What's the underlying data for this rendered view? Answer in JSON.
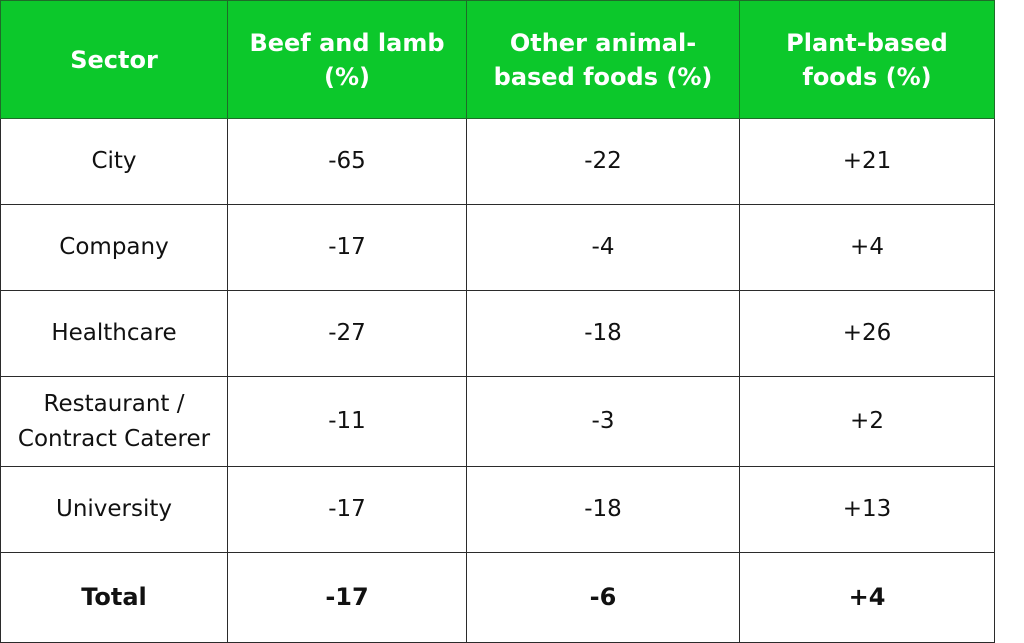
{
  "chart_data": {
    "type": "table",
    "columns": [
      "Sector",
      "Beef and lamb (%)",
      "Other animal-based foods (%)",
      "Plant-based foods (%)"
    ],
    "rows": [
      {
        "sector": "City",
        "beef_and_lamb": "-65",
        "other_animal": "-22",
        "plant_based": "+21"
      },
      {
        "sector": "Company",
        "beef_and_lamb": "-17",
        "other_animal": "-4",
        "plant_based": "+4"
      },
      {
        "sector": "Healthcare",
        "beef_and_lamb": "-27",
        "other_animal": "-18",
        "plant_based": "+26"
      },
      {
        "sector": "Restaurant / Contract Caterer",
        "beef_and_lamb": "-11",
        "other_animal": "-3",
        "plant_based": "+2"
      },
      {
        "sector": "University",
        "beef_and_lamb": "-17",
        "other_animal": "-18",
        "plant_based": "+13"
      }
    ],
    "total": {
      "sector": "Total",
      "beef_and_lamb": "-17",
      "other_animal": "-6",
      "plant_based": "+4"
    }
  },
  "colors": {
    "header_background": "#0cc82b",
    "header_text": "#ffffff",
    "body_text": "#111111",
    "border": "#2b2b2b"
  }
}
